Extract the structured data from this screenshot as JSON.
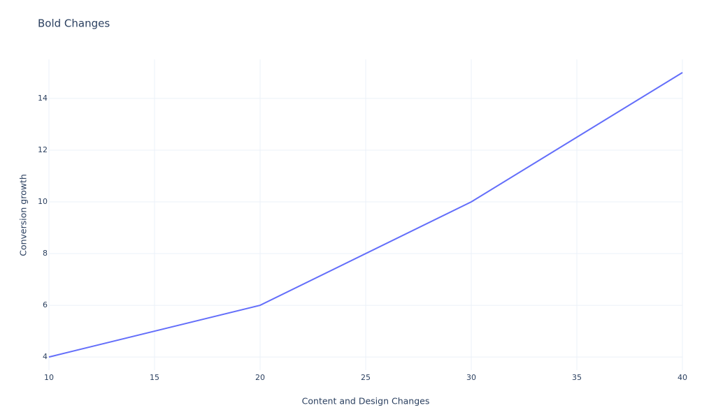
{
  "chart_data": {
    "type": "line",
    "title": "Bold Changes",
    "x_label": "Content and Design Changes",
    "y_label": "Conversion growth",
    "x": [
      10,
      20,
      30,
      40
    ],
    "series": [
      {
        "name": "Conversion growth",
        "color": "#636efa",
        "values": [
          4,
          6,
          10,
          15
        ]
      }
    ],
    "xlim": [
      10,
      40
    ],
    "xticks": [
      10,
      15,
      20,
      25,
      30,
      35,
      40
    ],
    "ylim": [
      3.49,
      15.51
    ],
    "yticks": [
      4,
      6,
      8,
      10,
      12,
      14
    ],
    "grid": true
  }
}
